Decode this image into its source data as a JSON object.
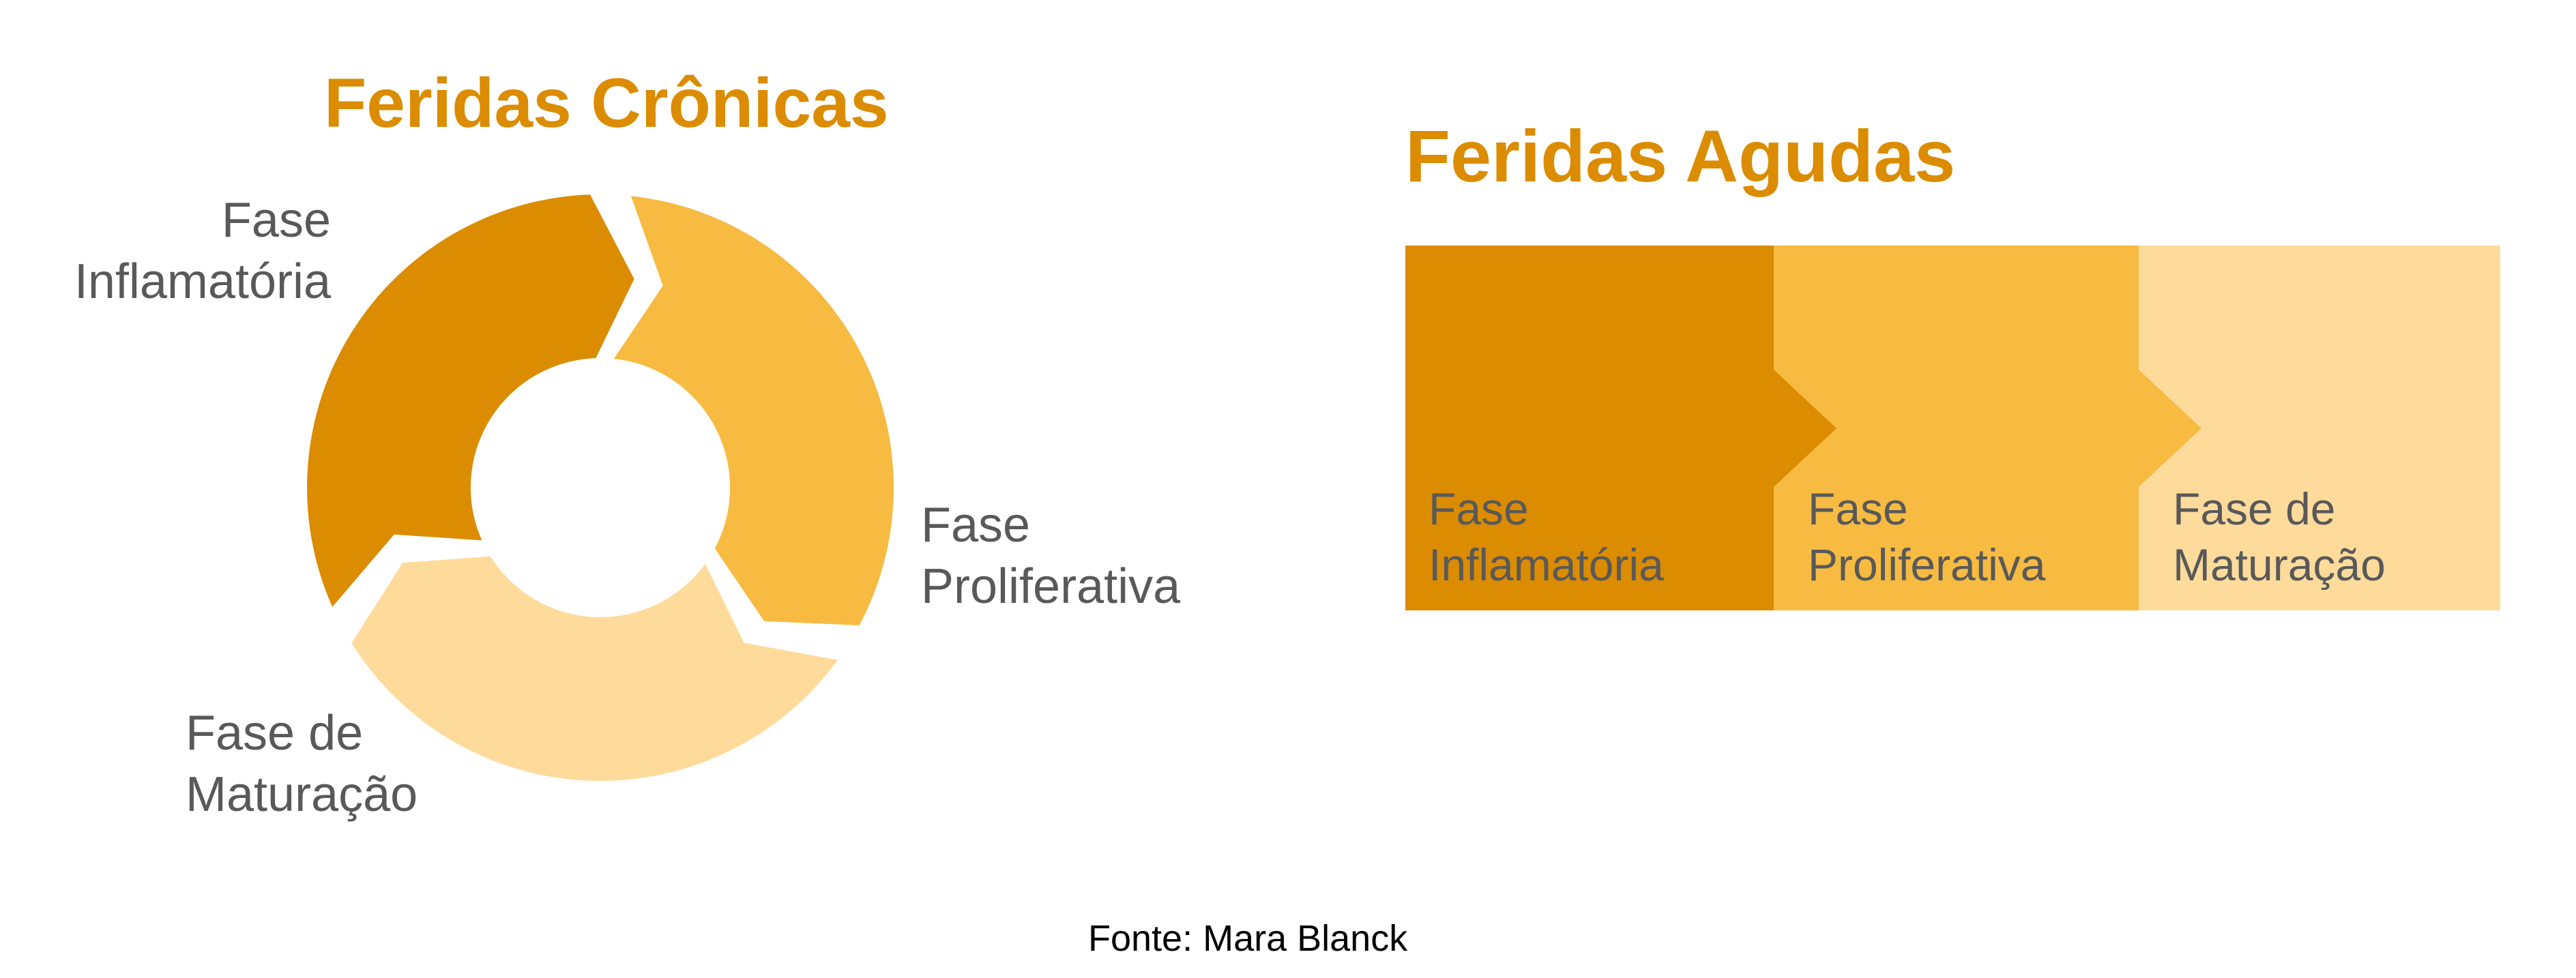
{
  "colors": {
    "title": "#DB8C00",
    "phase_1": "#DB8C00",
    "phase_2": "#F7BB42",
    "phase_3": "#FFDB9B",
    "label_text": "#595959",
    "source_text": "#000000",
    "background": "#FFFFFF"
  },
  "chronic": {
    "title": "Feridas Crônicas",
    "phases": [
      {
        "line1": "Fase",
        "line2": "Inflamatória"
      },
      {
        "line1": "Fase",
        "line2": "Proliferativa"
      },
      {
        "line1": "Fase de",
        "line2": "Maturação"
      }
    ]
  },
  "acute": {
    "title": "Feridas Agudas",
    "phases": [
      {
        "line1": "Fase",
        "line2": "Inflamatória"
      },
      {
        "line1": "Fase",
        "line2": "Proliferativa"
      },
      {
        "line1": "Fase de",
        "line2": "Maturação"
      }
    ]
  },
  "source": "Fonte: Mara Blanck"
}
